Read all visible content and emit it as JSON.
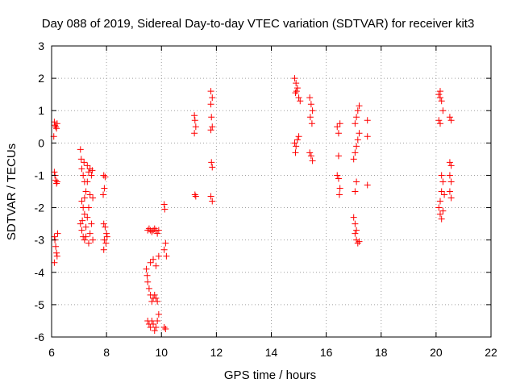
{
  "chart_data": {
    "type": "scatter",
    "title": "Day 088 of 2019, Sidereal Day-to-day VTEC variation (SDTVAR) for receiver kit3",
    "xlabel": "GPS time / hours",
    "ylabel": "SDTVAR / TECUs",
    "xlim": [
      6,
      22
    ],
    "ylim": [
      -6,
      3
    ],
    "xticks": [
      "6",
      "8",
      "10",
      "12",
      "14",
      "16",
      "18",
      "20",
      "22"
    ],
    "yticks": [
      "3",
      "2",
      "1",
      "0",
      "-1",
      "-2",
      "-3",
      "-4",
      "-5",
      "-6"
    ],
    "grid": true,
    "marker": "+",
    "series": [
      {
        "name": "SDTVAR",
        "color": "#ff0000",
        "points": [
          [
            6.1,
            0.65
          ],
          [
            6.12,
            0.55
          ],
          [
            6.15,
            0.5
          ],
          [
            6.18,
            0.45
          ],
          [
            6.2,
            0.6
          ],
          [
            6.08,
            0.2
          ],
          [
            6.1,
            -0.9
          ],
          [
            6.12,
            -1.0
          ],
          [
            6.15,
            -1.15
          ],
          [
            6.18,
            -1.25
          ],
          [
            6.2,
            -1.2
          ],
          [
            6.1,
            -2.9
          ],
          [
            6.12,
            -3.0
          ],
          [
            6.15,
            -3.2
          ],
          [
            6.18,
            -3.4
          ],
          [
            6.2,
            -3.5
          ],
          [
            6.1,
            -3.7
          ],
          [
            6.22,
            -2.8
          ],
          [
            7.05,
            -0.2
          ],
          [
            7.08,
            -0.5
          ],
          [
            7.1,
            -0.8
          ],
          [
            7.15,
            -1.0
          ],
          [
            7.2,
            -1.2
          ],
          [
            7.25,
            -1.5
          ],
          [
            7.1,
            -1.8
          ],
          [
            7.15,
            -2.0
          ],
          [
            7.2,
            -2.2
          ],
          [
            7.05,
            -2.5
          ],
          [
            7.1,
            -2.7
          ],
          [
            7.15,
            -2.9
          ],
          [
            7.2,
            -3.0
          ],
          [
            7.25,
            -2.6
          ],
          [
            7.3,
            -2.3
          ],
          [
            7.35,
            -2.0
          ],
          [
            7.4,
            -1.6
          ],
          [
            7.3,
            -1.2
          ],
          [
            7.35,
            -0.9
          ],
          [
            7.4,
            -0.8
          ],
          [
            7.45,
            -1.0
          ],
          [
            7.5,
            -1.7
          ],
          [
            7.45,
            -2.5
          ],
          [
            7.4,
            -2.8
          ],
          [
            7.5,
            -3.0
          ],
          [
            7.35,
            -3.1
          ],
          [
            7.3,
            -0.7
          ],
          [
            7.25,
            -2.9
          ],
          [
            7.2,
            -1.7
          ],
          [
            7.12,
            -2.4
          ],
          [
            7.18,
            -0.6
          ],
          [
            7.48,
            -0.85
          ],
          [
            7.9,
            -1.0
          ],
          [
            7.95,
            -1.05
          ],
          [
            7.92,
            -1.4
          ],
          [
            7.88,
            -1.6
          ],
          [
            7.9,
            -2.5
          ],
          [
            7.95,
            -2.6
          ],
          [
            8.0,
            -2.8
          ],
          [
            7.92,
            -3.0
          ],
          [
            7.98,
            -3.1
          ],
          [
            7.9,
            -3.3
          ],
          [
            8.02,
            -2.9
          ],
          [
            9.45,
            -3.9
          ],
          [
            9.48,
            -4.1
          ],
          [
            9.5,
            -4.3
          ],
          [
            9.55,
            -4.5
          ],
          [
            9.6,
            -4.7
          ],
          [
            9.65,
            -4.9
          ],
          [
            9.7,
            -4.8
          ],
          [
            9.75,
            -4.7
          ],
          [
            9.8,
            -4.8
          ],
          [
            9.85,
            -4.9
          ],
          [
            9.6,
            -3.7
          ],
          [
            9.7,
            -3.6
          ],
          [
            9.8,
            -3.8
          ],
          [
            9.9,
            -3.5
          ],
          [
            9.5,
            -5.5
          ],
          [
            9.55,
            -5.6
          ],
          [
            9.6,
            -5.7
          ],
          [
            9.65,
            -5.5
          ],
          [
            9.7,
            -5.6
          ],
          [
            9.75,
            -5.8
          ],
          [
            9.8,
            -5.7
          ],
          [
            9.85,
            -5.5
          ],
          [
            9.9,
            -5.3
          ],
          [
            9.5,
            -2.7
          ],
          [
            9.55,
            -2.65
          ],
          [
            9.6,
            -2.7
          ],
          [
            9.65,
            -2.75
          ],
          [
            9.7,
            -2.7
          ],
          [
            9.75,
            -2.65
          ],
          [
            9.8,
            -2.7
          ],
          [
            9.85,
            -2.8
          ],
          [
            9.9,
            -2.7
          ],
          [
            10.1,
            -1.9
          ],
          [
            10.12,
            -2.05
          ],
          [
            10.15,
            -3.1
          ],
          [
            10.1,
            -3.3
          ],
          [
            10.18,
            -3.5
          ],
          [
            10.1,
            -5.7
          ],
          [
            10.15,
            -5.75
          ],
          [
            11.2,
            0.85
          ],
          [
            11.22,
            0.7
          ],
          [
            11.25,
            0.5
          ],
          [
            11.2,
            0.3
          ],
          [
            11.22,
            -1.6
          ],
          [
            11.25,
            -1.65
          ],
          [
            11.8,
            1.6
          ],
          [
            11.85,
            1.4
          ],
          [
            11.8,
            1.2
          ],
          [
            11.82,
            0.8
          ],
          [
            11.85,
            0.5
          ],
          [
            11.8,
            0.4
          ],
          [
            11.82,
            -0.6
          ],
          [
            11.85,
            -0.75
          ],
          [
            11.8,
            -1.65
          ],
          [
            11.85,
            -1.8
          ],
          [
            14.85,
            2.0
          ],
          [
            14.9,
            1.85
          ],
          [
            14.95,
            1.7
          ],
          [
            14.88,
            1.55
          ],
          [
            15.0,
            1.4
          ],
          [
            15.05,
            1.3
          ],
          [
            14.92,
            1.6
          ],
          [
            14.85,
            0.0
          ],
          [
            14.9,
            -0.1
          ],
          [
            14.95,
            0.1
          ],
          [
            15.0,
            0.2
          ],
          [
            14.88,
            -0.3
          ],
          [
            15.4,
            1.4
          ],
          [
            15.45,
            1.2
          ],
          [
            15.5,
            1.0
          ],
          [
            15.42,
            0.8
          ],
          [
            15.48,
            0.6
          ],
          [
            15.4,
            -0.3
          ],
          [
            15.45,
            -0.4
          ],
          [
            15.5,
            -0.55
          ],
          [
            16.4,
            0.5
          ],
          [
            16.45,
            0.3
          ],
          [
            16.5,
            0.6
          ],
          [
            16.45,
            -0.4
          ],
          [
            16.4,
            -1.0
          ],
          [
            16.45,
            -1.1
          ],
          [
            16.5,
            -1.4
          ],
          [
            16.48,
            -1.6
          ],
          [
            17.0,
            -2.3
          ],
          [
            17.05,
            -2.5
          ],
          [
            17.1,
            -2.7
          ],
          [
            17.05,
            -2.8
          ],
          [
            17.1,
            -3.0
          ],
          [
            17.15,
            -3.1
          ],
          [
            17.2,
            -3.05
          ],
          [
            17.0,
            -0.5
          ],
          [
            17.05,
            -0.3
          ],
          [
            17.1,
            -0.1
          ],
          [
            17.15,
            0.1
          ],
          [
            17.2,
            0.3
          ],
          [
            17.05,
            0.6
          ],
          [
            17.1,
            0.8
          ],
          [
            17.15,
            1.0
          ],
          [
            17.2,
            1.15
          ],
          [
            17.1,
            -1.2
          ],
          [
            17.05,
            -1.5
          ],
          [
            17.5,
            0.7
          ],
          [
            17.5,
            0.2
          ],
          [
            17.5,
            -1.3
          ],
          [
            20.1,
            1.5
          ],
          [
            20.15,
            1.4
          ],
          [
            20.2,
            1.3
          ],
          [
            20.25,
            1.0
          ],
          [
            20.15,
            1.6
          ],
          [
            20.1,
            0.7
          ],
          [
            20.15,
            0.6
          ],
          [
            20.2,
            -1.0
          ],
          [
            20.25,
            -1.2
          ],
          [
            20.2,
            -1.5
          ],
          [
            20.15,
            -1.8
          ],
          [
            20.1,
            -2.0
          ],
          [
            20.15,
            -2.2
          ],
          [
            20.2,
            -2.35
          ],
          [
            20.25,
            -2.1
          ],
          [
            20.3,
            -1.6
          ],
          [
            20.5,
            0.8
          ],
          [
            20.55,
            0.7
          ],
          [
            20.5,
            -0.6
          ],
          [
            20.55,
            -0.7
          ],
          [
            20.5,
            -1.0
          ],
          [
            20.55,
            -1.2
          ],
          [
            20.5,
            -1.5
          ],
          [
            20.55,
            -1.7
          ]
        ]
      }
    ]
  }
}
